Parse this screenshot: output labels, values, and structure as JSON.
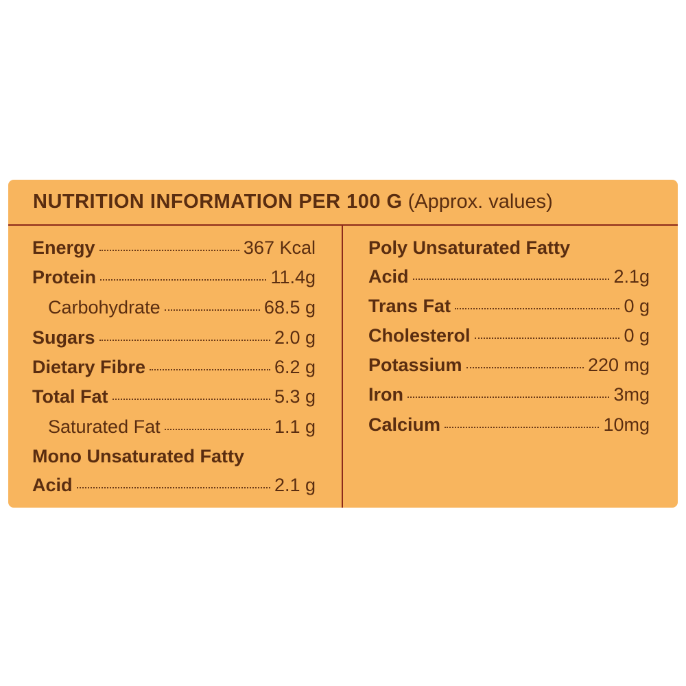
{
  "header": {
    "title": "NUTRITION INFORMATION PER 100 G",
    "subtitle": "(Approx. values)"
  },
  "columns": [
    {
      "rows": [
        {
          "label": "Energy",
          "value": "367 Kcal"
        },
        {
          "label": "Protein",
          "value": "11.4g"
        },
        {
          "label": "Carbohydrate",
          "value": "68.5 g",
          "indent": true
        },
        {
          "label": "Sugars",
          "value": "2.0 g"
        },
        {
          "label": "Dietary Fibre",
          "value": "6.2 g"
        },
        {
          "label": "Total Fat",
          "value": "5.3 g"
        },
        {
          "label": "Saturated Fat",
          "value": "1.1 g",
          "indent": true
        },
        {
          "label": "Mono Unsaturated Fatty"
        },
        {
          "label": "Acid",
          "value": "2.1 g"
        }
      ]
    },
    {
      "rows": [
        {
          "label": "Poly Unsaturated Fatty"
        },
        {
          "label": "Acid",
          "value": "2.1g"
        },
        {
          "label": "Trans Fat",
          "value": "0 g"
        },
        {
          "label": "Cholesterol",
          "value": "0 g"
        },
        {
          "label": "Potassium",
          "value": "220 mg"
        },
        {
          "label": "Iron",
          "value": "3mg"
        },
        {
          "label": "Calcium",
          "value": "10mg"
        }
      ]
    }
  ]
}
